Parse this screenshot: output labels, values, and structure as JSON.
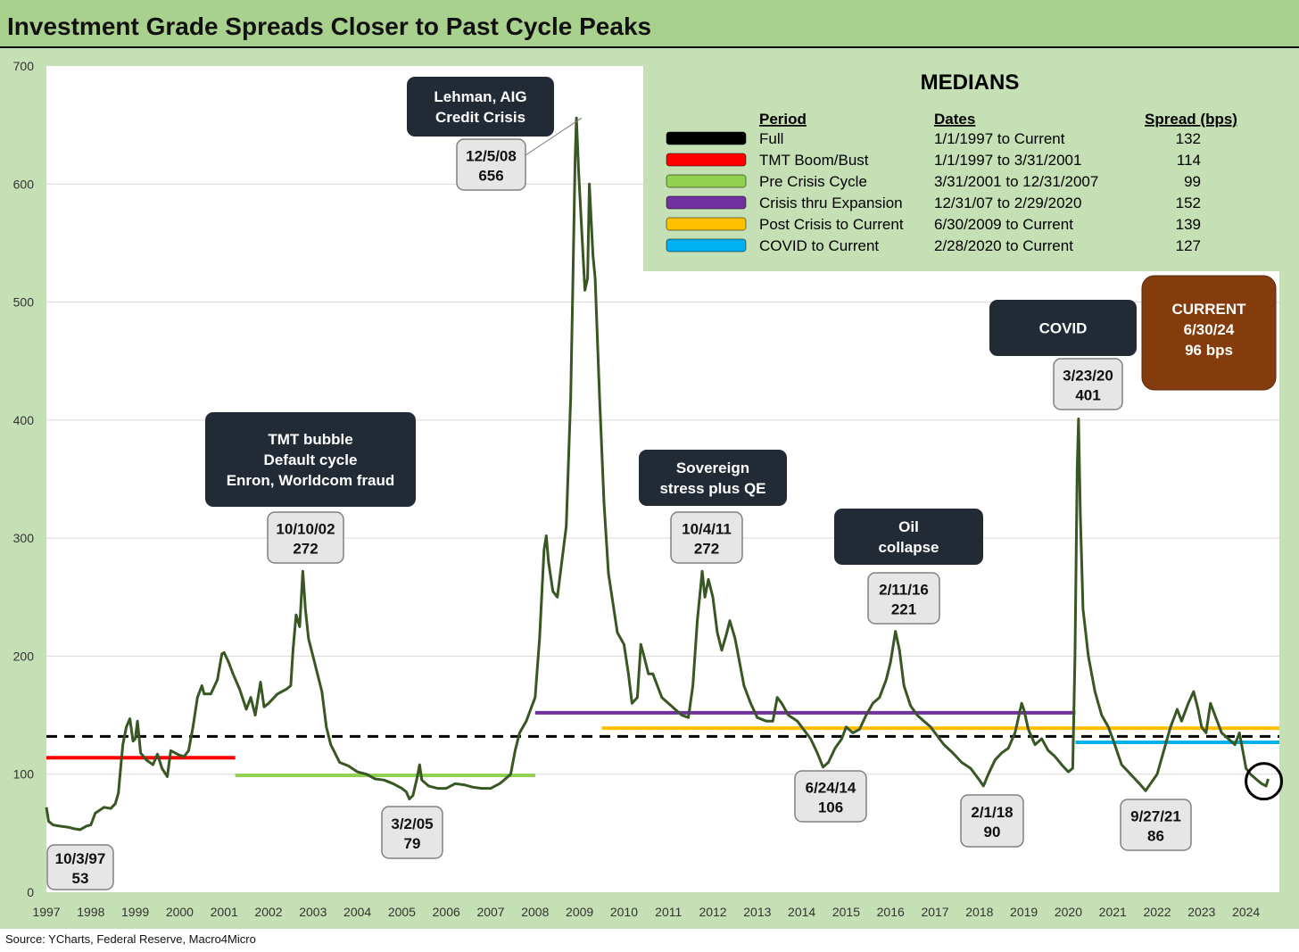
{
  "title": "Investment Grade Spreads Closer to Past Cycle Peaks",
  "source": "Source: YCharts, Federal Reserve, Macro4Micro",
  "colors": {
    "series": "#385723",
    "band": "#c5e0b4",
    "plot_bg": "#ffffff",
    "title_bg": "#a9d18e",
    "box_dark": "#222a35",
    "box_current": "#843c0c",
    "label_bg": "#e7e6e6",
    "median_full": "#000000",
    "median_tmt": "#ff0000",
    "median_precrisis": "#92d050",
    "median_crisis": "#7030a0",
    "median_postcrisis": "#ffc000",
    "median_covid": "#00b0f0"
  },
  "chart_data": {
    "type": "line",
    "xlim": [
      1997,
      2024.75
    ],
    "ylim": [
      0,
      700
    ],
    "y_ticks": [
      0,
      100,
      200,
      300,
      400,
      500,
      600,
      700
    ],
    "x_ticks": [
      "1997",
      "1998",
      "1999",
      "2000",
      "2001",
      "2002",
      "2003",
      "2004",
      "2005",
      "2006",
      "2007",
      "2008",
      "2009",
      "2010",
      "2011",
      "2012",
      "2013",
      "2014",
      "2015",
      "2016",
      "2017",
      "2018",
      "2019",
      "2020",
      "2021",
      "2022",
      "2023",
      "2024"
    ],
    "series": [
      {
        "name": "Investment Grade Spread (bps)",
        "points": [
          [
            1997.0,
            72
          ],
          [
            1997.05,
            60
          ],
          [
            1997.15,
            57
          ],
          [
            1997.3,
            56
          ],
          [
            1997.5,
            55
          ],
          [
            1997.6,
            54
          ],
          [
            1997.76,
            53
          ],
          [
            1997.9,
            56
          ],
          [
            1998.0,
            57
          ],
          [
            1998.1,
            67
          ],
          [
            1998.3,
            72
          ],
          [
            1998.45,
            71
          ],
          [
            1998.55,
            75
          ],
          [
            1998.62,
            84
          ],
          [
            1998.67,
            105
          ],
          [
            1998.72,
            125
          ],
          [
            1998.8,
            140
          ],
          [
            1998.88,
            147
          ],
          [
            1998.95,
            128
          ],
          [
            1999.0,
            130
          ],
          [
            1999.05,
            145
          ],
          [
            1999.12,
            118
          ],
          [
            1999.25,
            112
          ],
          [
            1999.4,
            108
          ],
          [
            1999.5,
            117
          ],
          [
            1999.6,
            105
          ],
          [
            1999.72,
            98
          ],
          [
            1999.8,
            120
          ],
          [
            1999.9,
            118
          ],
          [
            2000.0,
            116
          ],
          [
            2000.1,
            115
          ],
          [
            2000.2,
            120
          ],
          [
            2000.3,
            140
          ],
          [
            2000.4,
            165
          ],
          [
            2000.5,
            175
          ],
          [
            2000.55,
            168
          ],
          [
            2000.7,
            168
          ],
          [
            2000.85,
            180
          ],
          [
            2000.95,
            202
          ],
          [
            2001.0,
            203
          ],
          [
            2001.1,
            195
          ],
          [
            2001.2,
            185
          ],
          [
            2001.35,
            172
          ],
          [
            2001.5,
            155
          ],
          [
            2001.6,
            165
          ],
          [
            2001.7,
            150
          ],
          [
            2001.82,
            178
          ],
          [
            2001.9,
            157
          ],
          [
            2002.0,
            160
          ],
          [
            2002.2,
            168
          ],
          [
            2002.4,
            172
          ],
          [
            2002.5,
            175
          ],
          [
            2002.55,
            205
          ],
          [
            2002.62,
            235
          ],
          [
            2002.7,
            225
          ],
          [
            2002.77,
            272
          ],
          [
            2002.83,
            240
          ],
          [
            2002.9,
            215
          ],
          [
            2003.0,
            200
          ],
          [
            2003.2,
            170
          ],
          [
            2003.3,
            140
          ],
          [
            2003.4,
            125
          ],
          [
            2003.6,
            110
          ],
          [
            2003.8,
            107
          ],
          [
            2004.0,
            102
          ],
          [
            2004.2,
            100
          ],
          [
            2004.4,
            96
          ],
          [
            2004.6,
            95
          ],
          [
            2004.8,
            92
          ],
          [
            2005.0,
            88
          ],
          [
            2005.1,
            85
          ],
          [
            2005.17,
            79
          ],
          [
            2005.25,
            82
          ],
          [
            2005.35,
            98
          ],
          [
            2005.4,
            108
          ],
          [
            2005.45,
            95
          ],
          [
            2005.6,
            90
          ],
          [
            2005.8,
            88
          ],
          [
            2006.0,
            88
          ],
          [
            2006.2,
            92
          ],
          [
            2006.4,
            91
          ],
          [
            2006.6,
            89
          ],
          [
            2006.8,
            88
          ],
          [
            2007.0,
            88
          ],
          [
            2007.2,
            92
          ],
          [
            2007.3,
            95
          ],
          [
            2007.45,
            100
          ],
          [
            2007.55,
            120
          ],
          [
            2007.65,
            135
          ],
          [
            2007.8,
            145
          ],
          [
            2007.9,
            155
          ],
          [
            2008.0,
            165
          ],
          [
            2008.1,
            215
          ],
          [
            2008.2,
            290
          ],
          [
            2008.25,
            302
          ],
          [
            2008.3,
            280
          ],
          [
            2008.4,
            255
          ],
          [
            2008.5,
            250
          ],
          [
            2008.6,
            280
          ],
          [
            2008.7,
            310
          ],
          [
            2008.8,
            420
          ],
          [
            2008.85,
            520
          ],
          [
            2008.9,
            620
          ],
          [
            2008.93,
            656
          ],
          [
            2008.98,
            610
          ],
          [
            2009.05,
            560
          ],
          [
            2009.12,
            510
          ],
          [
            2009.18,
            520
          ],
          [
            2009.22,
            600
          ],
          [
            2009.3,
            540
          ],
          [
            2009.35,
            520
          ],
          [
            2009.45,
            420
          ],
          [
            2009.55,
            330
          ],
          [
            2009.65,
            270
          ],
          [
            2009.75,
            245
          ],
          [
            2009.85,
            220
          ],
          [
            2010.0,
            210
          ],
          [
            2010.1,
            185
          ],
          [
            2010.18,
            160
          ],
          [
            2010.3,
            165
          ],
          [
            2010.38,
            210
          ],
          [
            2010.45,
            200
          ],
          [
            2010.55,
            185
          ],
          [
            2010.65,
            185
          ],
          [
            2010.75,
            175
          ],
          [
            2010.85,
            165
          ],
          [
            2011.0,
            160
          ],
          [
            2011.15,
            155
          ],
          [
            2011.3,
            150
          ],
          [
            2011.45,
            148
          ],
          [
            2011.55,
            175
          ],
          [
            2011.65,
            230
          ],
          [
            2011.76,
            272
          ],
          [
            2011.82,
            250
          ],
          [
            2011.9,
            265
          ],
          [
            2012.0,
            250
          ],
          [
            2012.1,
            220
          ],
          [
            2012.2,
            205
          ],
          [
            2012.3,
            218
          ],
          [
            2012.38,
            230
          ],
          [
            2012.5,
            215
          ],
          [
            2012.6,
            195
          ],
          [
            2012.7,
            175
          ],
          [
            2012.85,
            160
          ],
          [
            2013.0,
            148
          ],
          [
            2013.2,
            145
          ],
          [
            2013.35,
            145
          ],
          [
            2013.45,
            165
          ],
          [
            2013.55,
            160
          ],
          [
            2013.7,
            150
          ],
          [
            2013.9,
            145
          ],
          [
            2014.0,
            140
          ],
          [
            2014.2,
            130
          ],
          [
            2014.35,
            118
          ],
          [
            2014.48,
            106
          ],
          [
            2014.6,
            110
          ],
          [
            2014.75,
            122
          ],
          [
            2014.9,
            130
          ],
          [
            2015.0,
            140
          ],
          [
            2015.15,
            135
          ],
          [
            2015.3,
            138
          ],
          [
            2015.45,
            150
          ],
          [
            2015.6,
            160
          ],
          [
            2015.75,
            165
          ],
          [
            2015.9,
            180
          ],
          [
            2016.0,
            195
          ],
          [
            2016.11,
            221
          ],
          [
            2016.2,
            205
          ],
          [
            2016.3,
            175
          ],
          [
            2016.45,
            158
          ],
          [
            2016.6,
            150
          ],
          [
            2016.75,
            145
          ],
          [
            2016.9,
            140
          ],
          [
            2017.0,
            135
          ],
          [
            2017.2,
            125
          ],
          [
            2017.4,
            118
          ],
          [
            2017.6,
            110
          ],
          [
            2017.8,
            105
          ],
          [
            2018.0,
            95
          ],
          [
            2018.09,
            90
          ],
          [
            2018.2,
            100
          ],
          [
            2018.35,
            112
          ],
          [
            2018.5,
            118
          ],
          [
            2018.65,
            122
          ],
          [
            2018.8,
            135
          ],
          [
            2018.95,
            160
          ],
          [
            2019.0,
            155
          ],
          [
            2019.1,
            138
          ],
          [
            2019.25,
            125
          ],
          [
            2019.4,
            130
          ],
          [
            2019.55,
            120
          ],
          [
            2019.7,
            115
          ],
          [
            2019.85,
            108
          ],
          [
            2020.0,
            102
          ],
          [
            2020.1,
            105
          ],
          [
            2020.15,
            200
          ],
          [
            2020.2,
            360
          ],
          [
            2020.23,
            401
          ],
          [
            2020.27,
            320
          ],
          [
            2020.33,
            240
          ],
          [
            2020.45,
            200
          ],
          [
            2020.6,
            170
          ],
          [
            2020.75,
            150
          ],
          [
            2020.9,
            140
          ],
          [
            2021.0,
            130
          ],
          [
            2021.2,
            108
          ],
          [
            2021.4,
            100
          ],
          [
            2021.6,
            92
          ],
          [
            2021.74,
            86
          ],
          [
            2021.85,
            92
          ],
          [
            2022.0,
            100
          ],
          [
            2022.15,
            120
          ],
          [
            2022.3,
            140
          ],
          [
            2022.45,
            155
          ],
          [
            2022.55,
            145
          ],
          [
            2022.7,
            160
          ],
          [
            2022.82,
            170
          ],
          [
            2022.92,
            155
          ],
          [
            2023.0,
            140
          ],
          [
            2023.1,
            135
          ],
          [
            2023.2,
            160
          ],
          [
            2023.3,
            150
          ],
          [
            2023.45,
            135
          ],
          [
            2023.6,
            130
          ],
          [
            2023.75,
            125
          ],
          [
            2023.85,
            135
          ],
          [
            2023.95,
            115
          ],
          [
            2024.0,
            105
          ],
          [
            2024.1,
            100
          ],
          [
            2024.25,
            95
          ],
          [
            2024.35,
            92
          ],
          [
            2024.45,
            90
          ],
          [
            2024.5,
            96
          ]
        ]
      }
    ],
    "median_lines": [
      {
        "key": "full",
        "value": 132,
        "x_start": 1997.0,
        "x_end": 2024.75,
        "dashed": true
      },
      {
        "key": "tmt",
        "value": 114,
        "x_start": 1997.0,
        "x_end": 2001.25,
        "dashed": false
      },
      {
        "key": "precrisis",
        "value": 99,
        "x_start": 2001.25,
        "x_end": 2008.0,
        "dashed": false
      },
      {
        "key": "crisis",
        "value": 152,
        "x_start": 2008.0,
        "x_end": 2020.16,
        "dashed": false
      },
      {
        "key": "postcrisis",
        "value": 139,
        "x_start": 2009.5,
        "x_end": 2024.75,
        "dashed": false
      },
      {
        "key": "covid",
        "value": 127,
        "x_start": 2020.16,
        "x_end": 2024.75,
        "dashed": false
      }
    ],
    "point_labels": [
      {
        "date": "10/3/97",
        "value": "53",
        "x": 1997.76,
        "y": 53
      },
      {
        "date": "10/10/02",
        "value": "272",
        "x": 2002.77,
        "y": 272
      },
      {
        "date": "3/2/05",
        "value": "79",
        "x": 2005.17,
        "y": 79
      },
      {
        "date": "12/5/08",
        "value": "656",
        "x": 2008.93,
        "y": 656
      },
      {
        "date": "10/4/11",
        "value": "272",
        "x": 2011.76,
        "y": 272
      },
      {
        "date": "6/24/14",
        "value": "106",
        "x": 2014.48,
        "y": 106
      },
      {
        "date": "2/11/16",
        "value": "221",
        "x": 2016.11,
        "y": 221
      },
      {
        "date": "2/1/18",
        "value": "90",
        "x": 2018.09,
        "y": 90
      },
      {
        "date": "3/23/20",
        "value": "401",
        "x": 2020.23,
        "y": 401
      },
      {
        "date": "9/27/21",
        "value": "86",
        "x": 2021.74,
        "y": 86
      }
    ],
    "event_boxes": [
      {
        "lines": [
          "Lehman, AIG",
          "Credit Crisis"
        ]
      },
      {
        "lines": [
          "TMT bubble",
          "Default cycle",
          "Enron, Worldcom fraud"
        ]
      },
      {
        "lines": [
          "Sovereign",
          "stress plus QE"
        ]
      },
      {
        "lines": [
          "Oil",
          "collapse"
        ]
      },
      {
        "lines": [
          "COVID"
        ]
      }
    ],
    "current_box": {
      "lines": [
        "CURRENT",
        "6/30/24",
        "96 bps"
      ]
    },
    "current_marker": {
      "x": 2024.4,
      "y": 94
    }
  },
  "medians_table": {
    "title": "MEDIANS",
    "headers": {
      "period": "Period",
      "dates": "Dates",
      "spread": "Spread (bps)"
    },
    "rows": [
      {
        "key": "full",
        "period": "Full",
        "dates": "1/1/1997 to Current",
        "spread": "132"
      },
      {
        "key": "tmt",
        "period": "TMT Boom/Bust",
        "dates": "1/1/1997 to 3/31/2001",
        "spread": "114"
      },
      {
        "key": "precrisis",
        "period": "Pre Crisis Cycle",
        "dates": "3/31/2001 to 12/31/2007",
        "spread": "99"
      },
      {
        "key": "crisis",
        "period": "Crisis thru Expansion",
        "dates": "12/31/07 to 2/29/2020",
        "spread": "152"
      },
      {
        "key": "postcrisis",
        "period": "Post Crisis to Current",
        "dates": "6/30/2009 to Current",
        "spread": "139"
      },
      {
        "key": "covid",
        "period": "COVID to Current",
        "dates": "2/28/2020 to Current",
        "spread": "127"
      }
    ]
  }
}
